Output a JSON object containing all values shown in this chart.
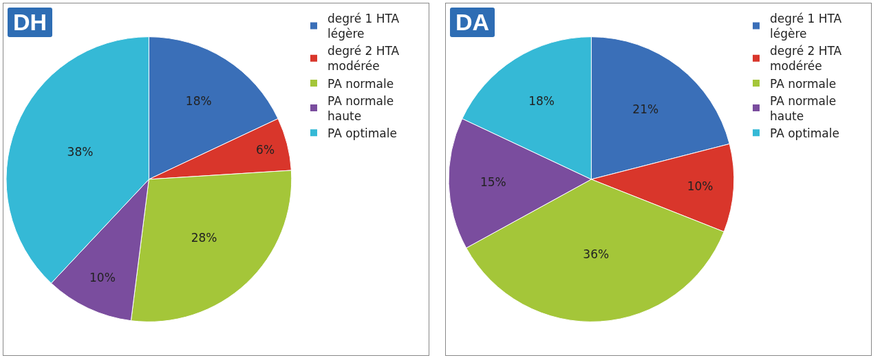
{
  "chart_data": [
    {
      "type": "pie",
      "title": "DH",
      "categories": [
        "degré 1 HTA légère",
        "degré 2 HTA modérée",
        "PA normale",
        "PA normale haute",
        "PA optimale"
      ],
      "values": [
        18,
        6,
        28,
        10,
        38
      ],
      "value_labels": [
        "18%",
        "6%",
        "28%",
        "10%",
        "38%"
      ],
      "colors": [
        "#3a6fb8",
        "#d9362b",
        "#a4c639",
        "#7a4d9e",
        "#35b9d6"
      ],
      "legend": "right"
    },
    {
      "type": "pie",
      "title": "DA",
      "categories": [
        "degré 1 HTA légère",
        "degré 2 HTA modérée",
        "PA normale",
        "PA normale haute",
        "PA optimale"
      ],
      "values": [
        21,
        10,
        36,
        15,
        18
      ],
      "value_labels": [
        "21%",
        "10%",
        "36%",
        "15%",
        "18%"
      ],
      "colors": [
        "#3a6fb8",
        "#d9362b",
        "#a4c639",
        "#7a4d9e",
        "#35b9d6"
      ],
      "legend": "right"
    }
  ]
}
